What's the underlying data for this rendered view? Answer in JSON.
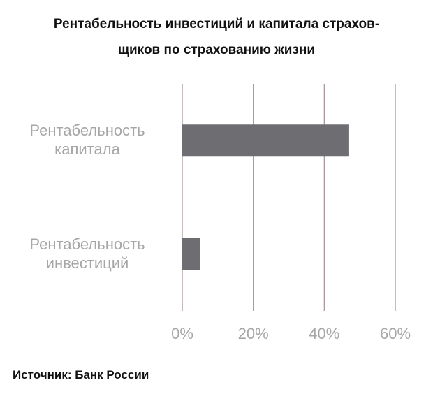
{
  "chart_data": {
    "type": "bar",
    "orientation": "horizontal",
    "title": [
      "Рентабельность инвестиций и капитала страхов-",
      "щиков по страхованию жизни"
    ],
    "categories": [
      "Рентабельность капитала",
      "Рентабельность инвестиций"
    ],
    "values": [
      47,
      5
    ],
    "color": "#6e6d71",
    "xlim": [
      0,
      60
    ],
    "xticks": [
      {
        "value": 0,
        "label": "0%"
      },
      {
        "value": 20,
        "label": "20%"
      },
      {
        "value": 40,
        "label": "40%"
      },
      {
        "value": 60,
        "label": "60%"
      }
    ],
    "grid": true,
    "grid_color": "#a89a9a",
    "source": "Источник: Банк России"
  }
}
